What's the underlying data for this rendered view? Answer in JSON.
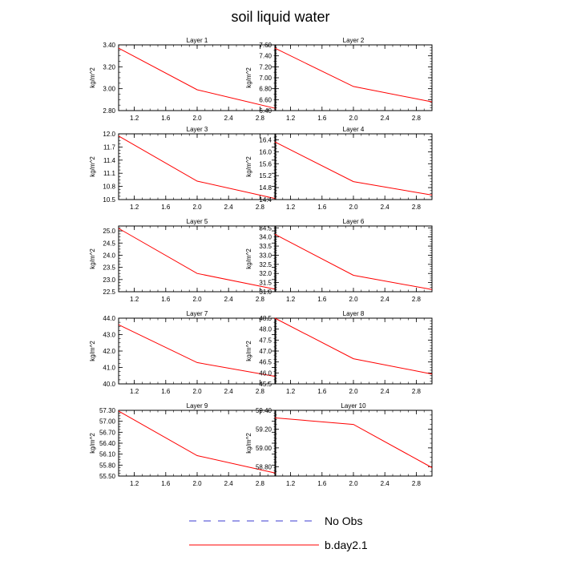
{
  "title": "soil liquid water",
  "series_colors": {
    "no_obs": "#3b3bd1",
    "model": "#ff0000"
  },
  "chart_data": [
    {
      "type": "line",
      "title": "Layer 1",
      "ylabel": "kg/m^2",
      "xlim": [
        1,
        3
      ],
      "ylim": [
        2.8,
        3.4
      ],
      "xticks": [
        1.2,
        1.6,
        2.0,
        2.4,
        2.8
      ],
      "xtick_labels": [
        "1.2",
        "1.6",
        "2.0",
        "2.4",
        "2.8"
      ],
      "yticks": [
        2.8,
        3.0,
        3.2,
        3.4
      ],
      "ytick_labels": [
        "2.80",
        "3.00",
        "3.20",
        "3.40"
      ],
      "series": [
        {
          "name": "b.day2.1",
          "x": [
            1,
            2,
            3
          ],
          "y": [
            3.37,
            2.99,
            2.82
          ]
        }
      ]
    },
    {
      "type": "line",
      "title": "Layer 2",
      "ylabel": "kg/m^2",
      "xlim": [
        1,
        3
      ],
      "ylim": [
        6.4,
        7.6
      ],
      "xticks": [
        1.2,
        1.6,
        2.0,
        2.4,
        2.8
      ],
      "xtick_labels": [
        "1.2",
        "1.6",
        "2.0",
        "2.4",
        "2.8"
      ],
      "yticks": [
        6.4,
        6.6,
        6.8,
        7.0,
        7.2,
        7.4,
        7.6
      ],
      "ytick_labels": [
        "6.40",
        "6.60",
        "6.80",
        "7.00",
        "7.20",
        "7.40",
        "7.60"
      ],
      "series": [
        {
          "name": "b.day2.1",
          "x": [
            1,
            2,
            3
          ],
          "y": [
            7.54,
            6.84,
            6.56
          ]
        }
      ]
    },
    {
      "type": "line",
      "title": "Layer 3",
      "ylabel": "kg/m^2",
      "xlim": [
        1,
        3
      ],
      "ylim": [
        10.5,
        12.0
      ],
      "xticks": [
        1.2,
        1.6,
        2.0,
        2.4,
        2.8
      ],
      "xtick_labels": [
        "1.2",
        "1.6",
        "2.0",
        "2.4",
        "2.8"
      ],
      "yticks": [
        10.5,
        10.8,
        11.1,
        11.4,
        11.7,
        12.0
      ],
      "ytick_labels": [
        "10.5",
        "10.8",
        "11.1",
        "11.4",
        "11.7",
        "12.0"
      ],
      "series": [
        {
          "name": "b.day2.1",
          "x": [
            1,
            2,
            3
          ],
          "y": [
            11.95,
            10.92,
            10.52
          ]
        }
      ]
    },
    {
      "type": "line",
      "title": "Layer 4",
      "ylabel": "kg/m^2",
      "xlim": [
        1,
        3
      ],
      "ylim": [
        14.4,
        16.6
      ],
      "xticks": [
        1.2,
        1.6,
        2.0,
        2.4,
        2.8
      ],
      "xtick_labels": [
        "1.2",
        "1.6",
        "2.0",
        "2.4",
        "2.8"
      ],
      "yticks": [
        14.4,
        14.8,
        15.2,
        15.6,
        16.0,
        16.4
      ],
      "ytick_labels": [
        "14.4",
        "14.8",
        "15.2",
        "15.6",
        "16.0",
        "16.4"
      ],
      "series": [
        {
          "name": "b.day2.1",
          "x": [
            1,
            2,
            3
          ],
          "y": [
            16.33,
            15.0,
            14.55
          ]
        }
      ]
    },
    {
      "type": "line",
      "title": "Layer 5",
      "ylabel": "kg/m^2",
      "xlim": [
        1,
        3
      ],
      "ylim": [
        22.5,
        25.2
      ],
      "xticks": [
        1.2,
        1.6,
        2.0,
        2.4,
        2.8
      ],
      "xtick_labels": [
        "1.2",
        "1.6",
        "2.0",
        "2.4",
        "2.8"
      ],
      "yticks": [
        22.5,
        23.0,
        23.5,
        24.0,
        24.5,
        25.0
      ],
      "ytick_labels": [
        "22.5",
        "23.0",
        "23.5",
        "24.0",
        "24.5",
        "25.0"
      ],
      "series": [
        {
          "name": "b.day2.1",
          "x": [
            1,
            2,
            3
          ],
          "y": [
            25.1,
            23.25,
            22.6
          ]
        }
      ]
    },
    {
      "type": "line",
      "title": "Layer 6",
      "ylabel": "kg/m^2",
      "xlim": [
        1,
        3
      ],
      "ylim": [
        31.0,
        34.6
      ],
      "xticks": [
        1.2,
        1.6,
        2.0,
        2.4,
        2.8
      ],
      "xtick_labels": [
        "1.2",
        "1.6",
        "2.0",
        "2.4",
        "2.8"
      ],
      "yticks": [
        31.0,
        31.5,
        32.0,
        32.5,
        33.0,
        33.5,
        34.0,
        34.5
      ],
      "ytick_labels": [
        "31.0",
        "31.5",
        "32.0",
        "32.5",
        "33.0",
        "33.5",
        "34.0",
        "34.5"
      ],
      "series": [
        {
          "name": "b.day2.1",
          "x": [
            1,
            2,
            3
          ],
          "y": [
            34.15,
            31.9,
            31.12
          ]
        }
      ]
    },
    {
      "type": "line",
      "title": "Layer 7",
      "ylabel": "kg/m^2",
      "xlim": [
        1,
        3
      ],
      "ylim": [
        40.0,
        44.0
      ],
      "xticks": [
        1.2,
        1.6,
        2.0,
        2.4,
        2.8
      ],
      "xtick_labels": [
        "1.2",
        "1.6",
        "2.0",
        "2.4",
        "2.8"
      ],
      "yticks": [
        40.0,
        41.0,
        42.0,
        43.0,
        44.0
      ],
      "ytick_labels": [
        "40.0",
        "41.0",
        "42.0",
        "43.0",
        "44.0"
      ],
      "series": [
        {
          "name": "b.day2.1",
          "x": [
            1,
            2,
            3
          ],
          "y": [
            43.6,
            41.3,
            40.45
          ]
        }
      ]
    },
    {
      "type": "line",
      "title": "Layer 8",
      "ylabel": "kg/m^2",
      "xlim": [
        1,
        3
      ],
      "ylim": [
        45.5,
        48.5
      ],
      "xticks": [
        1.2,
        1.6,
        2.0,
        2.4,
        2.8
      ],
      "xtick_labels": [
        "1.2",
        "1.6",
        "2.0",
        "2.4",
        "2.8"
      ],
      "yticks": [
        45.5,
        46.0,
        46.5,
        47.0,
        47.5,
        48.0,
        48.5
      ],
      "ytick_labels": [
        "45.5",
        "46.0",
        "46.5",
        "47.0",
        "47.5",
        "48.0",
        "48.5"
      ],
      "series": [
        {
          "name": "b.day2.1",
          "x": [
            1,
            2,
            3
          ],
          "y": [
            48.5,
            46.65,
            45.95
          ]
        }
      ]
    },
    {
      "type": "line",
      "title": "Layer 9",
      "ylabel": "kg/m^2",
      "xlim": [
        1,
        3
      ],
      "ylim": [
        55.5,
        57.3
      ],
      "xticks": [
        1.2,
        1.6,
        2.0,
        2.4,
        2.8
      ],
      "xtick_labels": [
        "1.2",
        "1.6",
        "2.0",
        "2.4",
        "2.8"
      ],
      "yticks": [
        55.5,
        55.8,
        56.1,
        56.4,
        56.7,
        57.0,
        57.3
      ],
      "ytick_labels": [
        "55.50",
        "55.80",
        "56.10",
        "56.40",
        "56.70",
        "57.00",
        "57.30"
      ],
      "series": [
        {
          "name": "b.day2.1",
          "x": [
            1,
            2,
            3
          ],
          "y": [
            57.28,
            56.06,
            55.58
          ]
        }
      ]
    },
    {
      "type": "line",
      "title": "Layer 10",
      "ylabel": "kg/m^2",
      "xlim": [
        1,
        3
      ],
      "ylim": [
        58.7,
        59.4
      ],
      "xticks": [
        1.2,
        1.6,
        2.0,
        2.4,
        2.8
      ],
      "xtick_labels": [
        "1.2",
        "1.6",
        "2.0",
        "2.4",
        "2.8"
      ],
      "yticks": [
        58.8,
        59.0,
        59.2,
        59.4
      ],
      "ytick_labels": [
        "58.80",
        "59.00",
        "59.20",
        "59.40"
      ],
      "series": [
        {
          "name": "b.day2.1",
          "x": [
            1,
            2,
            3
          ],
          "y": [
            59.32,
            59.25,
            58.79
          ]
        }
      ]
    }
  ],
  "legend": {
    "items": [
      {
        "label": "No Obs",
        "style": "dashed",
        "color": "#3b3bd1"
      },
      {
        "label": "b.day2.1",
        "style": "solid",
        "color": "#ff0000"
      }
    ]
  }
}
